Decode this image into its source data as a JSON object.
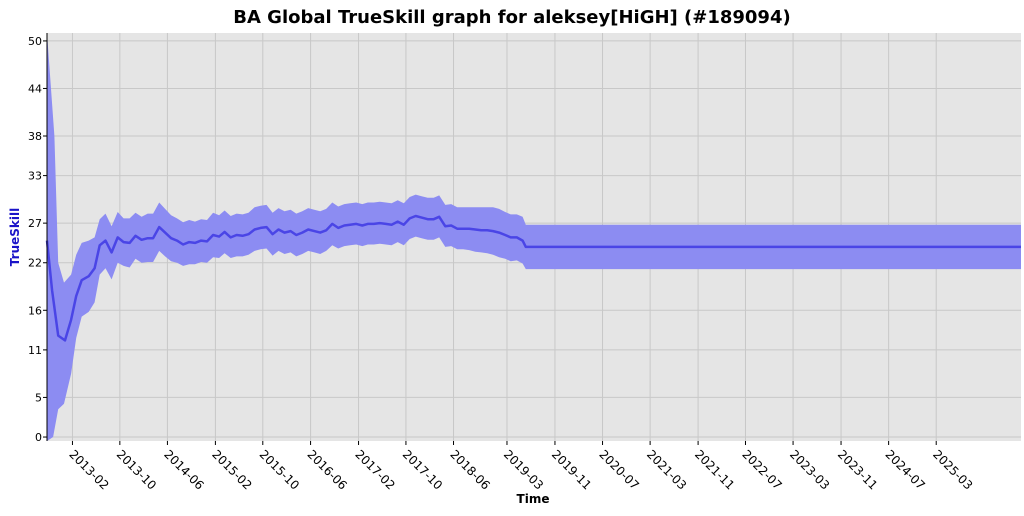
{
  "chart_data": {
    "type": "line",
    "title": "BA Global TrueSkill graph for aleksey[HiGH] (#189094)",
    "xlabel": "Time",
    "ylabel": "TrueSkill",
    "ylim": [
      -0.5,
      51
    ],
    "xlim": [
      "2012-09-24",
      "2026-05-08"
    ],
    "yticks": [
      0,
      5,
      11,
      16,
      22,
      27,
      33,
      38,
      44,
      50
    ],
    "xticks": [
      "2013-02",
      "2013-10",
      "2014-06",
      "2015-02",
      "2015-10",
      "2016-06",
      "2017-02",
      "2017-10",
      "2018-06",
      "2019-03",
      "2019-11",
      "2020-07",
      "2021-03",
      "2021-11",
      "2022-07",
      "2023-03",
      "2023-11",
      "2024-07",
      "2025-03"
    ],
    "grid": true,
    "legend": "none",
    "colors": {
      "plot_background": "#e5e5e5",
      "grid": "#c8c8c8",
      "line": "#4a45e6",
      "band": "#8c8cf2",
      "ylabel": "#1a13c8"
    },
    "series": [
      {
        "line_points": [
          [
            "2012-09-24",
            24.8
          ],
          [
            "2012-10-20",
            18.5
          ],
          [
            "2012-11-20",
            12.8
          ],
          [
            "2012-12-25",
            12.2
          ],
          [
            "2013-01-25",
            14.8
          ],
          [
            "2013-02-20",
            17.8
          ],
          [
            "2013-03-20",
            19.8
          ],
          [
            "2013-04-25",
            20.3
          ],
          [
            "2013-05-25",
            21.3
          ],
          [
            "2013-06-20",
            24.2
          ],
          [
            "2013-07-20",
            24.8
          ],
          [
            "2013-08-20",
            23.3
          ],
          [
            "2013-09-20",
            25.2
          ],
          [
            "2013-10-20",
            24.6
          ],
          [
            "2013-11-20",
            24.5
          ],
          [
            "2013-12-20",
            25.4
          ],
          [
            "2014-01-20",
            24.9
          ],
          [
            "2014-02-20",
            25.1
          ],
          [
            "2014-03-20",
            25.1
          ],
          [
            "2014-04-20",
            26.5
          ],
          [
            "2014-05-20",
            25.8
          ],
          [
            "2014-06-20",
            25.1
          ],
          [
            "2014-07-20",
            24.8
          ],
          [
            "2014-08-20",
            24.3
          ],
          [
            "2014-09-20",
            24.6
          ],
          [
            "2014-10-20",
            24.5
          ],
          [
            "2014-11-20",
            24.8
          ],
          [
            "2014-12-20",
            24.7
          ],
          [
            "2015-01-20",
            25.5
          ],
          [
            "2015-02-20",
            25.3
          ],
          [
            "2015-03-20",
            25.9
          ],
          [
            "2015-04-20",
            25.2
          ],
          [
            "2015-05-20",
            25.5
          ],
          [
            "2015-06-20",
            25.4
          ],
          [
            "2015-07-20",
            25.6
          ],
          [
            "2015-08-20",
            26.2
          ],
          [
            "2015-09-20",
            26.4
          ],
          [
            "2015-10-20",
            26.5
          ],
          [
            "2015-11-20",
            25.6
          ],
          [
            "2015-12-20",
            26.2
          ],
          [
            "2016-01-20",
            25.8
          ],
          [
            "2016-02-20",
            26.0
          ],
          [
            "2016-03-20",
            25.5
          ],
          [
            "2016-04-20",
            25.8
          ],
          [
            "2016-05-20",
            26.2
          ],
          [
            "2016-06-20",
            26.0
          ],
          [
            "2016-07-20",
            25.8
          ],
          [
            "2016-08-20",
            26.1
          ],
          [
            "2016-09-20",
            26.9
          ],
          [
            "2016-10-20",
            26.4
          ],
          [
            "2016-11-20",
            26.7
          ],
          [
            "2016-12-20",
            26.8
          ],
          [
            "2017-01-20",
            26.9
          ],
          [
            "2017-02-20",
            26.7
          ],
          [
            "2017-03-20",
            26.9
          ],
          [
            "2017-04-20",
            26.9
          ],
          [
            "2017-05-20",
            27.0
          ],
          [
            "2017-06-20",
            26.9
          ],
          [
            "2017-07-20",
            26.8
          ],
          [
            "2017-08-20",
            27.2
          ],
          [
            "2017-09-20",
            26.8
          ],
          [
            "2017-10-20",
            27.6
          ],
          [
            "2017-11-20",
            27.9
          ],
          [
            "2017-12-20",
            27.7
          ],
          [
            "2018-01-20",
            27.5
          ],
          [
            "2018-02-20",
            27.5
          ],
          [
            "2018-03-20",
            27.8
          ],
          [
            "2018-04-20",
            26.6
          ],
          [
            "2018-05-20",
            26.7
          ],
          [
            "2018-06-20",
            26.3
          ],
          [
            "2018-07-20",
            26.3
          ],
          [
            "2018-08-20",
            26.3
          ],
          [
            "2018-09-20",
            26.2
          ],
          [
            "2018-10-20",
            26.1
          ],
          [
            "2018-11-20",
            26.1
          ],
          [
            "2018-12-20",
            26.0
          ],
          [
            "2019-01-20",
            25.8
          ],
          [
            "2019-02-20",
            25.5
          ],
          [
            "2019-03-20",
            25.2
          ],
          [
            "2019-04-20",
            25.2
          ],
          [
            "2019-05-20",
            24.8
          ],
          [
            "2019-06-05",
            24.0
          ],
          [
            "2026-05-08",
            24.0
          ]
        ],
        "band_upper": [
          [
            "2012-09-24",
            51.0
          ],
          [
            "2012-11-01",
            38.0
          ],
          [
            "2012-11-20",
            22.0
          ],
          [
            "2012-12-20",
            19.5
          ],
          [
            "2013-01-25",
            20.5
          ],
          [
            "2013-02-20",
            23.0
          ],
          [
            "2013-03-20",
            24.5
          ],
          [
            "2013-04-25",
            24.8
          ],
          [
            "2013-05-25",
            25.2
          ],
          [
            "2013-06-20",
            27.5
          ],
          [
            "2013-07-20",
            28.2
          ],
          [
            "2013-08-20",
            26.6
          ],
          [
            "2013-09-20",
            28.4
          ],
          [
            "2013-10-20",
            27.6
          ],
          [
            "2013-11-20",
            27.6
          ],
          [
            "2013-12-20",
            28.3
          ],
          [
            "2014-01-20",
            27.8
          ],
          [
            "2014-02-20",
            28.2
          ],
          [
            "2014-03-20",
            28.2
          ],
          [
            "2014-04-20",
            29.6
          ],
          [
            "2014-05-20",
            28.8
          ],
          [
            "2014-06-20",
            28.0
          ],
          [
            "2014-07-20",
            27.6
          ],
          [
            "2014-08-20",
            27.1
          ],
          [
            "2014-09-20",
            27.4
          ],
          [
            "2014-10-20",
            27.2
          ],
          [
            "2014-11-20",
            27.5
          ],
          [
            "2014-12-20",
            27.4
          ],
          [
            "2015-01-20",
            28.3
          ],
          [
            "2015-02-20",
            28.0
          ],
          [
            "2015-03-20",
            28.6
          ],
          [
            "2015-04-20",
            27.9
          ],
          [
            "2015-05-20",
            28.2
          ],
          [
            "2015-06-20",
            28.1
          ],
          [
            "2015-07-20",
            28.3
          ],
          [
            "2015-08-20",
            29.0
          ],
          [
            "2015-09-20",
            29.2
          ],
          [
            "2015-10-20",
            29.3
          ],
          [
            "2015-11-20",
            28.3
          ],
          [
            "2015-12-20",
            28.9
          ],
          [
            "2016-01-20",
            28.5
          ],
          [
            "2016-02-20",
            28.7
          ],
          [
            "2016-03-20",
            28.2
          ],
          [
            "2016-04-20",
            28.5
          ],
          [
            "2016-05-20",
            28.9
          ],
          [
            "2016-06-20",
            28.7
          ],
          [
            "2016-07-20",
            28.5
          ],
          [
            "2016-08-20",
            28.8
          ],
          [
            "2016-09-20",
            29.6
          ],
          [
            "2016-10-20",
            29.1
          ],
          [
            "2016-11-20",
            29.4
          ],
          [
            "2016-12-20",
            29.5
          ],
          [
            "2017-01-20",
            29.6
          ],
          [
            "2017-02-20",
            29.4
          ],
          [
            "2017-03-20",
            29.6
          ],
          [
            "2017-04-20",
            29.6
          ],
          [
            "2017-05-20",
            29.7
          ],
          [
            "2017-06-20",
            29.6
          ],
          [
            "2017-07-20",
            29.5
          ],
          [
            "2017-08-20",
            29.9
          ],
          [
            "2017-09-20",
            29.5
          ],
          [
            "2017-10-20",
            30.3
          ],
          [
            "2017-11-20",
            30.6
          ],
          [
            "2017-12-20",
            30.4
          ],
          [
            "2018-01-20",
            30.2
          ],
          [
            "2018-02-20",
            30.2
          ],
          [
            "2018-03-20",
            30.5
          ],
          [
            "2018-04-20",
            29.3
          ],
          [
            "2018-05-20",
            29.4
          ],
          [
            "2018-06-20",
            29.0
          ],
          [
            "2018-07-20",
            29.0
          ],
          [
            "2018-08-20",
            29.0
          ],
          [
            "2018-09-20",
            29.0
          ],
          [
            "2018-10-20",
            29.0
          ],
          [
            "2018-11-20",
            29.0
          ],
          [
            "2018-12-20",
            29.0
          ],
          [
            "2019-01-20",
            28.8
          ],
          [
            "2019-02-20",
            28.4
          ],
          [
            "2019-03-20",
            28.1
          ],
          [
            "2019-04-20",
            28.1
          ],
          [
            "2019-05-20",
            27.8
          ],
          [
            "2019-06-05",
            26.8
          ],
          [
            "2026-05-08",
            26.8
          ]
        ],
        "band_lower": [
          [
            "2012-09-24",
            -0.5
          ],
          [
            "2012-10-25",
            0.0
          ],
          [
            "2012-11-20",
            3.5
          ],
          [
            "2012-12-20",
            4.2
          ],
          [
            "2013-01-25",
            8.0
          ],
          [
            "2013-02-20",
            12.5
          ],
          [
            "2013-03-20",
            15.2
          ],
          [
            "2013-04-25",
            15.8
          ],
          [
            "2013-05-25",
            17.0
          ],
          [
            "2013-06-20",
            20.5
          ],
          [
            "2013-07-20",
            21.3
          ],
          [
            "2013-08-20",
            19.9
          ],
          [
            "2013-09-20",
            22.0
          ],
          [
            "2013-10-20",
            21.6
          ],
          [
            "2013-11-20",
            21.4
          ],
          [
            "2013-12-20",
            22.5
          ],
          [
            "2014-01-20",
            22.0
          ],
          [
            "2014-02-20",
            22.1
          ],
          [
            "2014-03-20",
            22.1
          ],
          [
            "2014-04-20",
            23.5
          ],
          [
            "2014-05-20",
            22.8
          ],
          [
            "2014-06-20",
            22.2
          ],
          [
            "2014-07-20",
            22.0
          ],
          [
            "2014-08-20",
            21.6
          ],
          [
            "2014-09-20",
            21.8
          ],
          [
            "2014-10-20",
            21.8
          ],
          [
            "2014-11-20",
            22.1
          ],
          [
            "2014-12-20",
            22.0
          ],
          [
            "2015-01-20",
            22.7
          ],
          [
            "2015-02-20",
            22.6
          ],
          [
            "2015-03-20",
            23.2
          ],
          [
            "2015-04-20",
            22.6
          ],
          [
            "2015-05-20",
            22.8
          ],
          [
            "2015-06-20",
            22.8
          ],
          [
            "2015-07-20",
            23.0
          ],
          [
            "2015-08-20",
            23.5
          ],
          [
            "2015-09-20",
            23.7
          ],
          [
            "2015-10-20",
            23.8
          ],
          [
            "2015-11-20",
            22.9
          ],
          [
            "2015-12-20",
            23.5
          ],
          [
            "2016-01-20",
            23.1
          ],
          [
            "2016-02-20",
            23.3
          ],
          [
            "2016-03-20",
            22.8
          ],
          [
            "2016-04-20",
            23.1
          ],
          [
            "2016-05-20",
            23.5
          ],
          [
            "2016-06-20",
            23.3
          ],
          [
            "2016-07-20",
            23.1
          ],
          [
            "2016-08-20",
            23.5
          ],
          [
            "2016-09-20",
            24.2
          ],
          [
            "2016-10-20",
            23.8
          ],
          [
            "2016-11-20",
            24.1
          ],
          [
            "2016-12-20",
            24.2
          ],
          [
            "2017-01-20",
            24.3
          ],
          [
            "2017-02-20",
            24.1
          ],
          [
            "2017-03-20",
            24.3
          ],
          [
            "2017-04-20",
            24.3
          ],
          [
            "2017-05-20",
            24.4
          ],
          [
            "2017-06-20",
            24.3
          ],
          [
            "2017-07-20",
            24.2
          ],
          [
            "2017-08-20",
            24.6
          ],
          [
            "2017-09-20",
            24.2
          ],
          [
            "2017-10-20",
            25.0
          ],
          [
            "2017-11-20",
            25.3
          ],
          [
            "2017-12-20",
            25.1
          ],
          [
            "2018-01-20",
            24.9
          ],
          [
            "2018-02-20",
            24.9
          ],
          [
            "2018-03-20",
            25.2
          ],
          [
            "2018-04-20",
            24.0
          ],
          [
            "2018-05-20",
            24.1
          ],
          [
            "2018-06-20",
            23.7
          ],
          [
            "2018-07-20",
            23.7
          ],
          [
            "2018-08-20",
            23.6
          ],
          [
            "2018-09-20",
            23.4
          ],
          [
            "2018-10-20",
            23.3
          ],
          [
            "2018-11-20",
            23.2
          ],
          [
            "2018-12-20",
            23.0
          ],
          [
            "2019-01-20",
            22.7
          ],
          [
            "2019-02-20",
            22.5
          ],
          [
            "2019-03-20",
            22.2
          ],
          [
            "2019-04-20",
            22.3
          ],
          [
            "2019-05-20",
            21.9
          ],
          [
            "2019-06-05",
            21.2
          ],
          [
            "2026-05-08",
            21.2
          ]
        ]
      }
    ]
  }
}
